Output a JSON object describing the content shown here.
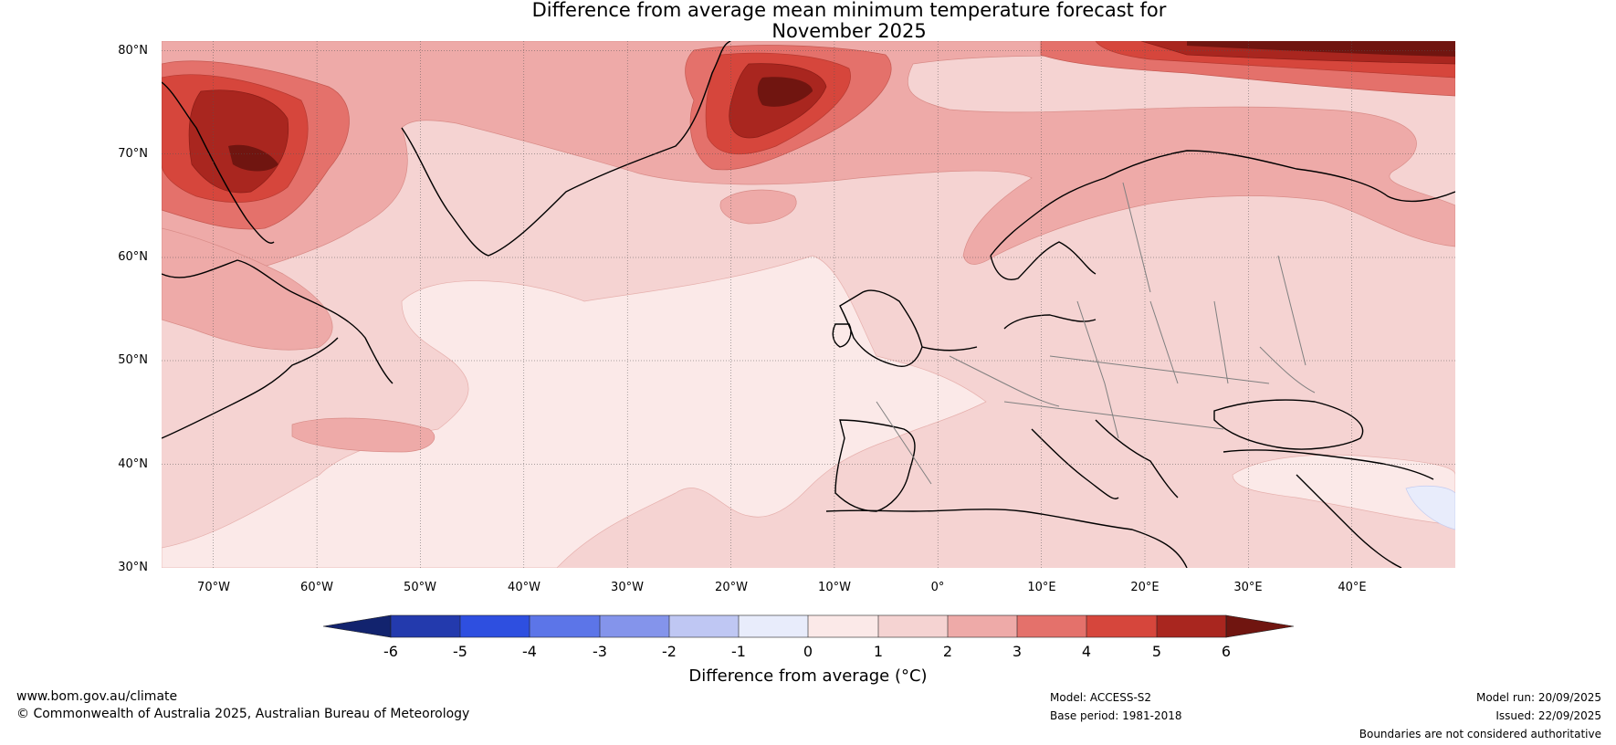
{
  "title": {
    "line1": "Difference from average mean minimum temperature forecast for",
    "line2": "November 2025"
  },
  "map": {
    "lat_labels": [
      "80°N",
      "70°N",
      "60°N",
      "50°N",
      "40°N",
      "30°N"
    ],
    "lon_labels": [
      "70°W",
      "60°W",
      "50°W",
      "40°W",
      "30°W",
      "20°W",
      "10°W",
      "0°",
      "10°E",
      "20°E",
      "30°E",
      "40°E"
    ],
    "extent": {
      "lon_min": -75,
      "lon_max": 50,
      "lat_min": 30,
      "lat_max": 81
    }
  },
  "colorbar": {
    "ticks": [
      "-6",
      "-5",
      "-4",
      "-3",
      "-2",
      "-1",
      "0",
      "1",
      "2",
      "3",
      "4",
      "5",
      "6"
    ],
    "colors": [
      "#12236e",
      "#233aad",
      "#2e4fe0",
      "#5c75e8",
      "#8494eb",
      "#bfc7f3",
      "#e8ecfb",
      "#fbe9e8",
      "#f5d3d2",
      "#eeaaa8",
      "#e4716b",
      "#d6463c",
      "#a9261f",
      "#701510"
    ],
    "label": "Difference from average (°C)"
  },
  "footer": {
    "website": "www.bom.gov.au/climate",
    "copyright": "© Commonwealth of Australia 2025, Australian Bureau of Meteorology",
    "model": "Model: ACCESS-S2",
    "base_period": "Base period: 1981-2018",
    "model_run": "Model run: 20/09/2025",
    "issued": "Issued: 22/09/2025",
    "boundaries_note": "Boundaries are not considered authoritative"
  }
}
